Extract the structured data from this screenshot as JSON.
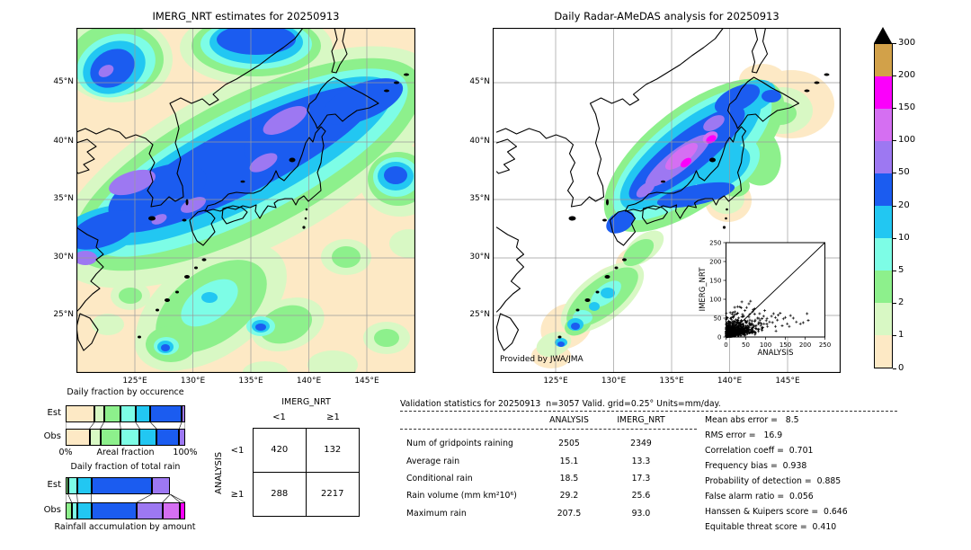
{
  "palette": {
    "bins": [
      "0",
      "1",
      "2",
      "5",
      "10",
      "20",
      "50",
      "100",
      "150",
      "200",
      "300"
    ],
    "colors": [
      "#fde9c5",
      "#d8f8c4",
      "#8df08c",
      "#7dfde6",
      "#22c7f2",
      "#1b5cf0",
      "#9d78f2",
      "#d56ff2",
      "#fb00fb",
      "#d2a149"
    ],
    "over_color": "#000000",
    "grid_color": "#9a9a9a"
  },
  "left_map": {
    "title": "IMERG_NRT estimates for 20250913",
    "lat_ticks": [
      "45°N",
      "40°N",
      "35°N",
      "30°N",
      "25°N"
    ],
    "lon_ticks": [
      "125°E",
      "130°E",
      "135°E",
      "140°E",
      "145°E"
    ]
  },
  "right_map": {
    "title": "Daily Radar-AMeDAS analysis for 20250913",
    "lat_ticks": [
      "45°N",
      "40°N",
      "35°N",
      "30°N",
      "25°N"
    ],
    "lon_ticks": [
      "125°E",
      "130°E",
      "135°E",
      "140°E",
      "145°E"
    ],
    "credit": "Provided by JWA/JMA"
  },
  "colorbar": {
    "tick_labels": [
      "300",
      "200",
      "150",
      "100",
      "50",
      "20",
      "10",
      "5",
      "2",
      "1",
      "0"
    ]
  },
  "chart_data": [
    {
      "id": "occurrence",
      "type": "bar",
      "title": "Daily fraction by occurence",
      "xlabel": "Areal fraction",
      "x_ticks": [
        "0%",
        "100%"
      ],
      "rows": [
        "Est",
        "Obs"
      ],
      "bin_edges_mm": [
        0,
        1,
        2,
        5,
        10,
        20,
        50,
        100
      ],
      "series": [
        {
          "name": "Est",
          "colors_idx": [
            0,
            1,
            2,
            3,
            4,
            5,
            6
          ],
          "values": [
            24,
            8,
            13.5,
            13,
            12.5,
            26,
            3
          ]
        },
        {
          "name": "Obs",
          "colors_idx": [
            0,
            1,
            2,
            3,
            4,
            5,
            6
          ],
          "values": [
            20,
            9,
            17,
            16,
            14,
            19,
            5
          ]
        }
      ]
    },
    {
      "id": "totalrain",
      "type": "bar",
      "title": "Daily fraction of total rain",
      "xlabel": "Rainfall accumulation by amount",
      "rows": [
        "Est",
        "Obs"
      ],
      "bin_edges_mm": [
        2,
        5,
        10,
        20,
        50,
        100,
        150,
        200
      ],
      "series": [
        {
          "name": "Est",
          "colors_idx": [
            2,
            3,
            4,
            5,
            6
          ],
          "values": [
            2,
            7.5,
            12,
            50.5,
            15.5
          ]
        },
        {
          "name": "Obs",
          "colors_idx": [
            2,
            3,
            4,
            5,
            6,
            7,
            8
          ],
          "values": [
            5,
            5,
            11.5,
            38,
            21.5,
            14.5,
            4.5
          ]
        }
      ]
    },
    {
      "id": "inset-scatter",
      "type": "scatter",
      "xlabel": "ANALYSIS",
      "ylabel": "IMERG_NRT",
      "xlim": [
        0,
        250
      ],
      "ylim": [
        0,
        250
      ],
      "tick_labels": [
        "0",
        "50",
        "100",
        "150",
        "200",
        "250"
      ],
      "ticks": [
        0,
        50,
        100,
        150,
        200,
        250
      ],
      "identity_line": true,
      "marker": "+",
      "cluster": {
        "n": 820,
        "seed": 20250913,
        "x_mean": 24,
        "y_mean": 12
      },
      "outliers": [
        [
          150,
          52
        ],
        [
          163,
          57
        ],
        [
          178,
          40
        ],
        [
          205,
          62
        ],
        [
          208,
          44
        ],
        [
          188,
          35
        ],
        [
          132,
          58
        ],
        [
          142,
          30
        ],
        [
          120,
          62
        ],
        [
          98,
          70
        ],
        [
          58,
          88
        ],
        [
          40,
          93
        ],
        [
          35,
          80
        ],
        [
          52,
          78
        ],
        [
          110,
          40
        ],
        [
          125,
          28
        ],
        [
          95,
          55
        ],
        [
          85,
          62
        ],
        [
          72,
          75
        ],
        [
          60,
          60
        ],
        [
          155,
          35
        ],
        [
          170,
          50
        ],
        [
          195,
          38
        ],
        [
          115,
          55
        ],
        [
          105,
          28
        ],
        [
          90,
          35
        ],
        [
          80,
          50
        ],
        [
          130,
          45
        ],
        [
          145,
          48
        ],
        [
          160,
          28
        ],
        [
          137,
          63
        ],
        [
          62,
          95
        ],
        [
          48,
          70
        ]
      ]
    }
  ],
  "contingency": {
    "col_header": "IMERG_NRT",
    "row_header": "ANALYSIS",
    "col_labels": [
      "<1",
      "≥1"
    ],
    "row_labels": [
      "<1",
      "≥1"
    ],
    "values": [
      [
        "420",
        "132"
      ],
      [
        "288",
        "2217"
      ]
    ]
  },
  "validation": {
    "title": "Validation statistics for 20250913  n=3057 Valid. grid=0.25° Units=mm/day.",
    "col_headers": [
      "ANALYSIS",
      "IMERG_NRT"
    ],
    "rows": [
      {
        "label": "Num of gridpoints raining",
        "analysis": "2505",
        "imerg": "2349"
      },
      {
        "label": "Average rain",
        "analysis": "15.1",
        "imerg": "13.3"
      },
      {
        "label": "Conditional rain",
        "analysis": "18.5",
        "imerg": "17.3"
      },
      {
        "label": "Rain volume (mm km²10⁶)",
        "analysis": "29.2",
        "imerg": "25.6"
      },
      {
        "label": "Maximum rain",
        "analysis": "207.5",
        "imerg": "93.0"
      }
    ]
  },
  "scores": {
    "lines": [
      "Mean abs error =   8.5",
      "RMS error =   16.9",
      "Correlation coeff =  0.701",
      "Frequency bias =  0.938",
      "Probability of detection =  0.885",
      "False alarm ratio =  0.056",
      "Hanssen & Kuipers score =  0.646",
      "Equitable threat score =  0.410"
    ]
  }
}
